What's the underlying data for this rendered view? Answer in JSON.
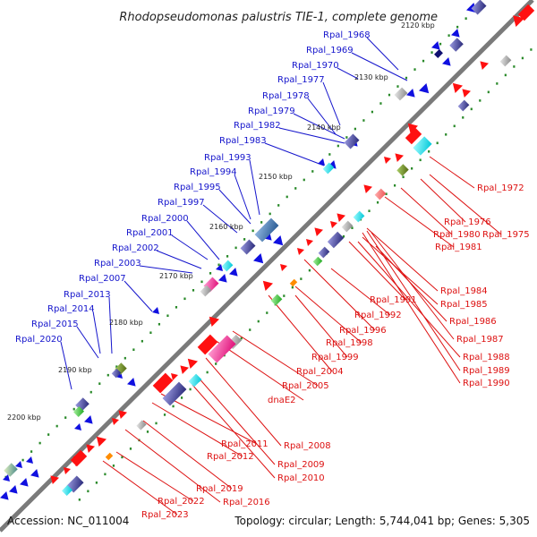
{
  "title": "Rhodopseudomonas palustris TIE-1, complete genome",
  "footer": {
    "accession": "Accession: NC_011004",
    "topology": "Topology: circular; Length: 5,744,041 bp; Genes: 5,305"
  },
  "colors": {
    "backbone": "#777777",
    "blue_label": "#1515cc",
    "red_label": "#dd1111",
    "tick": "#2a8a2a"
  },
  "kbp_labels": [
    "2120 kbp",
    "2130 kbp",
    "2140 kbp",
    "2150 kbp",
    "2160 kbp",
    "2170 kbp",
    "2180 kbp",
    "2190 kbp",
    "2200 kbp"
  ],
  "blue_labels": [
    "Rpal_1968",
    "Rpal_1969",
    "Rpal_1970",
    "Rpal_1977",
    "Rpal_1978",
    "Rpal_1979",
    "Rpal_1982",
    "Rpal_1983",
    "Rpal_1993",
    "Rpal_1994",
    "Rpal_1995",
    "Rpal_1997",
    "Rpal_2000",
    "Rpal_2001",
    "Rpal_2002",
    "Rpal_2003",
    "Rpal_2007",
    "Rpal_2013",
    "Rpal_2014",
    "Rpal_2015",
    "Rpal_2020"
  ],
  "red_labels": [
    "Rpal_1972",
    "Rpal_1976",
    "Rpal_1980",
    "Rpal_1975",
    "Rpal_1981",
    "Rpal_1984",
    "Rpal_1991",
    "Rpal_1985",
    "Rpal_1992",
    "Rpal_1986",
    "Rpal_1996",
    "Rpal_1987",
    "Rpal_1998",
    "Rpal_1988",
    "Rpal_1999",
    "Rpal_1989",
    "Rpal_2004",
    "Rpal_1990",
    "Rpal_2005",
    "dnaE2",
    "Rpal_2008",
    "Rpal_2011",
    "Rpal_2012",
    "Rpal_2009",
    "Rpal_2010",
    "Rpal_2019",
    "Rpal_2016",
    "Rpal_2022",
    "Rpal_2023"
  ]
}
